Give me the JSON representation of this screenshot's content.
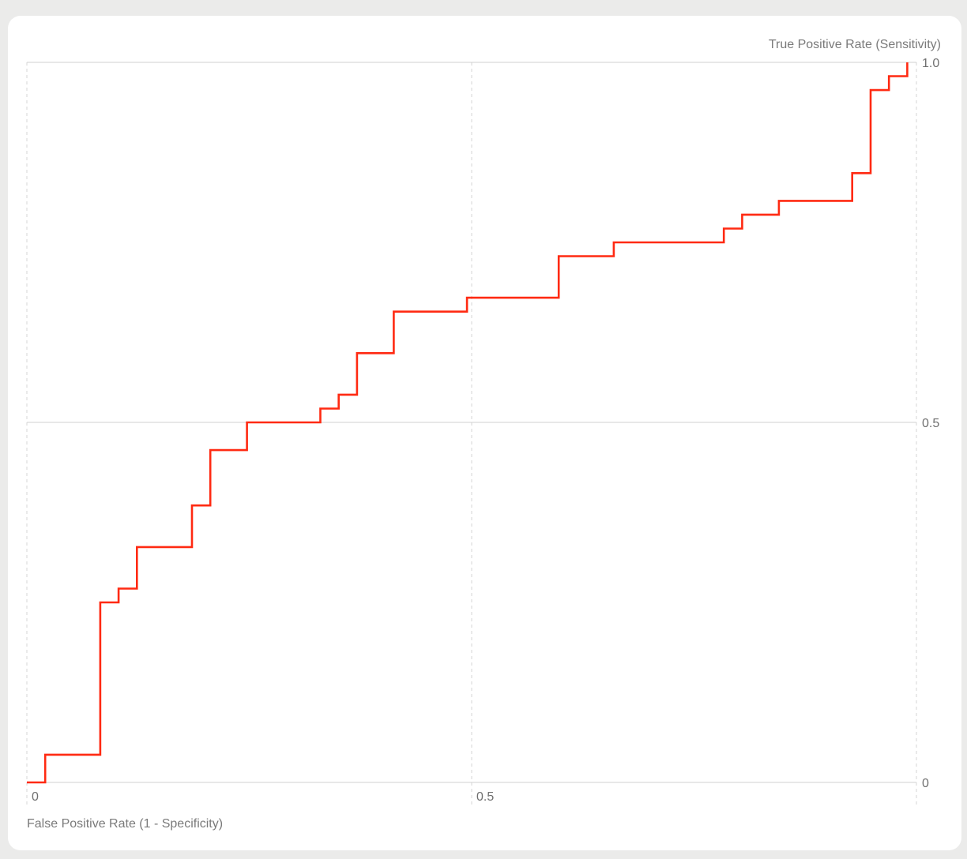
{
  "chart_data": {
    "type": "line",
    "line_style": "step",
    "xlabel": "False Positive Rate (1 - Specificity)",
    "ylabel": "True Positive Rate (Sensitivity)",
    "xlim": [
      0,
      1
    ],
    "ylim": [
      0,
      1
    ],
    "x_ticks": [
      {
        "value": 0,
        "label": "0"
      },
      {
        "value": 0.5,
        "label": "0.5"
      }
    ],
    "y_ticks": [
      {
        "value": 0,
        "label": "0"
      },
      {
        "value": 0.5,
        "label": "0.5"
      },
      {
        "value": 1,
        "label": "1.0"
      }
    ],
    "grid": true,
    "series": [
      {
        "color": "#ff2a12",
        "points": [
          [
            0.0,
            0.0
          ],
          [
            0.0206,
            0.0
          ],
          [
            0.0206,
            0.0385
          ],
          [
            0.0825,
            0.0385
          ],
          [
            0.0825,
            0.25
          ],
          [
            0.1031,
            0.25
          ],
          [
            0.1031,
            0.2692
          ],
          [
            0.1237,
            0.2692
          ],
          [
            0.1237,
            0.3269
          ],
          [
            0.1856,
            0.3269
          ],
          [
            0.1856,
            0.3846
          ],
          [
            0.2062,
            0.3846
          ],
          [
            0.2062,
            0.4615
          ],
          [
            0.2474,
            0.4615
          ],
          [
            0.2474,
            0.5
          ],
          [
            0.3299,
            0.5
          ],
          [
            0.3299,
            0.5192
          ],
          [
            0.3505,
            0.5192
          ],
          [
            0.3505,
            0.5385
          ],
          [
            0.3711,
            0.5385
          ],
          [
            0.3711,
            0.5962
          ],
          [
            0.4124,
            0.5962
          ],
          [
            0.4124,
            0.6538
          ],
          [
            0.4948,
            0.6538
          ],
          [
            0.4948,
            0.6731
          ],
          [
            0.5979,
            0.6731
          ],
          [
            0.5979,
            0.7308
          ],
          [
            0.6598,
            0.7308
          ],
          [
            0.6598,
            0.75
          ],
          [
            0.7835,
            0.75
          ],
          [
            0.7835,
            0.7692
          ],
          [
            0.8041,
            0.7692
          ],
          [
            0.8041,
            0.7885
          ],
          [
            0.8454,
            0.7885
          ],
          [
            0.8454,
            0.8077
          ],
          [
            0.9278,
            0.8077
          ],
          [
            0.9278,
            0.8462
          ],
          [
            0.9485,
            0.8462
          ],
          [
            0.9485,
            0.9615
          ],
          [
            0.9691,
            0.9615
          ],
          [
            0.9691,
            0.9808
          ],
          [
            0.9897,
            0.9808
          ],
          [
            0.9897,
            1.0
          ]
        ]
      }
    ]
  }
}
